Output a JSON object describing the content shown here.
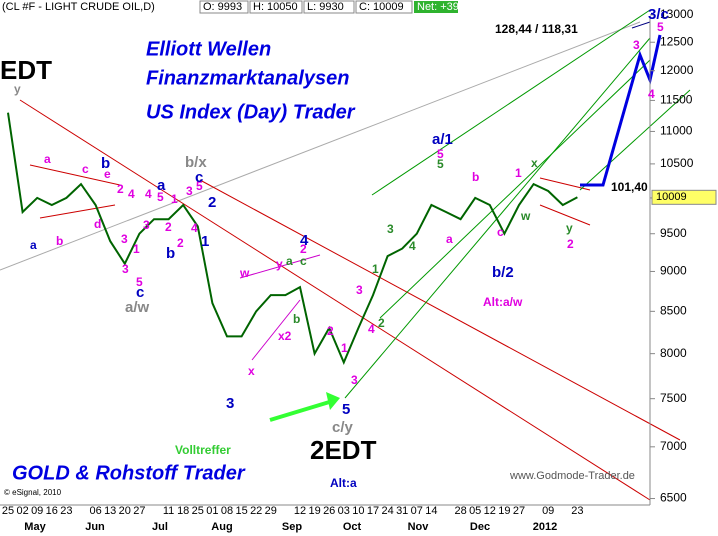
{
  "chart_data": {
    "type": "line",
    "title": "(CL #F - LIGHT CRUDE OIL,D)",
    "quote": [
      "O: 9993",
      "H: 10050",
      "L: 9930",
      "C: 10009",
      "Net: +39"
    ],
    "categories": [
      "25",
      "02",
      "09",
      "16",
      "23",
      null,
      "06",
      "13",
      "20",
      "27",
      null,
      "11",
      "18",
      "25",
      "01",
      "08",
      "15",
      "22",
      "29",
      null,
      "12",
      "19",
      "26",
      "03",
      "10",
      "17",
      "24",
      "31",
      "07",
      "14",
      null,
      "28",
      "05",
      "12",
      "19",
      "27",
      null,
      "09",
      null,
      "23"
    ],
    "months": [
      "May",
      "Jun",
      "Jul",
      "Aug",
      "Sep",
      "Oct",
      "Nov",
      "Dec",
      "2012"
    ],
    "series": [
      {
        "name": "CL #F",
        "color": "#006400",
        "values": [
          11300,
          9800,
          10000,
          9900,
          10000,
          10200,
          9900,
          9400,
          9100,
          9500,
          9700,
          9700,
          9900,
          9600,
          8600,
          8200,
          8200,
          8500,
          8700,
          8700,
          8800,
          8000,
          8300,
          7900,
          8300,
          8700,
          9200,
          9300,
          9500,
          9900,
          9800,
          9700,
          10000,
          9900,
          9500,
          9900,
          10200,
          10100,
          9900,
          10009
        ]
      }
    ],
    "ylim": [
      6440,
      13280
    ],
    "yscale": "log",
    "yticks": [
      6500,
      7000,
      7500,
      8000,
      8500,
      9000,
      9500,
      10000,
      10500,
      11000,
      11500,
      12000,
      12500,
      13000
    ],
    "annotations": [
      {
        "text": "EDT",
        "color": "#000"
      },
      {
        "text": "y",
        "color": "#888"
      },
      {
        "text": "a",
        "color": "#e000e0"
      },
      {
        "text": "b",
        "color": "#e000e0"
      },
      {
        "text": "a",
        "color": "#0000c0"
      },
      {
        "text": "c",
        "color": "#e000e0"
      },
      {
        "text": "e",
        "color": "#e000e0"
      },
      {
        "text": "b",
        "color": "#0000c0"
      },
      {
        "text": "2",
        "color": "#e000e0"
      },
      {
        "text": "d",
        "color": "#e000e0"
      },
      {
        "text": "3",
        "color": "#e000e0"
      },
      {
        "text": "4",
        "color": "#e000e0"
      },
      {
        "text": "1",
        "color": "#e000e0"
      },
      {
        "text": "3",
        "color": "#e000e0"
      },
      {
        "text": "5",
        "color": "#e000e0"
      },
      {
        "text": "c",
        "color": "#0000c0"
      },
      {
        "text": "a/w",
        "color": "#888"
      },
      {
        "text": "4",
        "color": "#e000e0"
      },
      {
        "text": "3",
        "color": "#e000e0"
      },
      {
        "text": "a",
        "color": "#0000c0"
      },
      {
        "text": "5",
        "color": "#e000e0"
      },
      {
        "text": "2",
        "color": "#e000e0"
      },
      {
        "text": "1",
        "color": "#e000e0"
      },
      {
        "text": "b",
        "color": "#0000c0"
      },
      {
        "text": "3",
        "color": "#e000e0"
      },
      {
        "text": "2",
        "color": "#e000e0"
      },
      {
        "text": "4",
        "color": "#e000e0"
      },
      {
        "text": "5",
        "color": "#e000e0"
      },
      {
        "text": "c",
        "color": "#0000c0"
      },
      {
        "text": "b/x",
        "color": "#888"
      },
      {
        "text": "1",
        "color": "#0000c0"
      },
      {
        "text": "2",
        "color": "#0000c0"
      },
      {
        "text": "3",
        "color": "#0000c0"
      },
      {
        "text": "w",
        "color": "#e000e0"
      },
      {
        "text": "x",
        "color": "#e000e0"
      },
      {
        "text": "x2",
        "color": "#e000e0"
      },
      {
        "text": "y",
        "color": "#e000e0"
      },
      {
        "text": "a",
        "color": "#2a8a2a"
      },
      {
        "text": "c",
        "color": "#2a8a2a"
      },
      {
        "text": "4",
        "color": "#0000c0"
      },
      {
        "text": "2",
        "color": "#e000e0"
      },
      {
        "text": "b",
        "color": "#2a8a2a"
      },
      {
        "text": "2",
        "color": "#e000e0"
      },
      {
        "text": "1",
        "color": "#e000e0"
      },
      {
        "text": "3",
        "color": "#e000e0"
      },
      {
        "text": "4",
        "color": "#e000e0"
      },
      {
        "text": "2",
        "color": "#2a8a2a"
      },
      {
        "text": "1",
        "color": "#2a8a2a"
      },
      {
        "text": "3",
        "color": "#2a8a2a"
      },
      {
        "text": "4",
        "color": "#2a8a2a"
      },
      {
        "text": "5",
        "color": "#2a8a2a"
      },
      {
        "text": "5",
        "color": "#e000e0"
      },
      {
        "text": "a/1",
        "color": "#0000c0"
      },
      {
        "text": "a",
        "color": "#e000e0"
      },
      {
        "text": "b",
        "color": "#e000e0"
      },
      {
        "text": "c",
        "color": "#e000e0"
      },
      {
        "text": "b/2",
        "color": "#0000c0"
      },
      {
        "text": "1",
        "color": "#e000e0"
      },
      {
        "text": "w",
        "color": "#2a8a2a"
      },
      {
        "text": "x",
        "color": "#2a8a2a"
      },
      {
        "text": "y",
        "color": "#2a8a2a"
      },
      {
        "text": "2",
        "color": "#e000e0"
      },
      {
        "text": "Alt:a/w",
        "color": "#e000e0"
      },
      {
        "text": "5",
        "color": "#0000c0"
      },
      {
        "text": "3",
        "color": "#e000e0"
      },
      {
        "text": "c/y",
        "color": "#888"
      },
      {
        "text": "2EDT",
        "color": "#000"
      },
      {
        "text": "Alt:a",
        "color": "#0000c0"
      },
      {
        "text": "Volltreffer",
        "color": "#3c3"
      },
      {
        "text": "3",
        "color": "#e000e0"
      },
      {
        "text": "5",
        "color": "#e000e0"
      },
      {
        "text": "4",
        "color": "#e000e0"
      },
      {
        "text": "3/c",
        "color": "#0000c0"
      },
      {
        "text": "128,44 / 118,31",
        "color": "#000"
      },
      {
        "text": "101,40",
        "color": "#000"
      },
      {
        "text": "Elliott Wellen",
        "color": "#0000e0"
      },
      {
        "text": "Finanzmarktanalysen",
        "color": "#0000e0"
      },
      {
        "text": "US Index (Day) Trader",
        "color": "#0000e0"
      },
      {
        "text": "GOLD & Rohstoff Trader",
        "color": "#0000e0"
      }
    ],
    "copyright": "© eSignal, 2010",
    "watermark": "www.Godmode-Trader.de"
  }
}
